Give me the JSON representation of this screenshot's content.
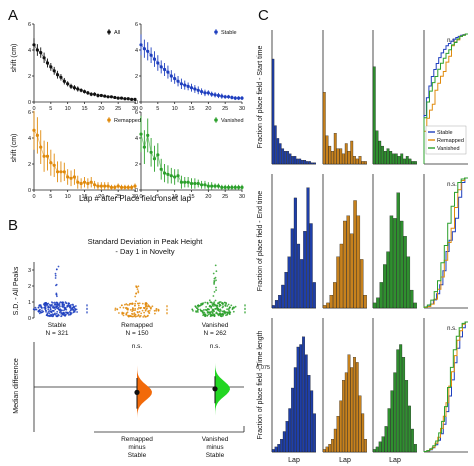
{
  "panel_letters": {
    "a": "A",
    "b": "B",
    "c": "C"
  },
  "colors": {
    "all": "#111111",
    "stable": "#1f3fbf",
    "remapped": "#e08a0c",
    "vanished": "#2ca02c",
    "stable_bar": "#1f3fa8",
    "remapped_bar": "#c6811d",
    "vanished_bar": "#2f8f2f",
    "remapped_diff": "#f26a0a",
    "vanished_diff": "#22d622"
  },
  "chart_data": [
    {
      "id": "A",
      "type": "line",
      "xlabel": "Lap # after Place field onset lap",
      "ylabel": "shift (cm)",
      "xlim": [
        0,
        30
      ],
      "ylim": [
        0,
        6
      ],
      "xticks": [
        0,
        5,
        10,
        15,
        20,
        25,
        30
      ],
      "yticks": [
        0,
        2,
        4,
        6
      ],
      "x": [
        0,
        1,
        2,
        3,
        4,
        5,
        6,
        7,
        8,
        9,
        10,
        11,
        12,
        13,
        14,
        15,
        16,
        17,
        18,
        19,
        20,
        21,
        22,
        23,
        24,
        25,
        26,
        27,
        28,
        29,
        30
      ],
      "series": [
        {
          "name": "All",
          "color_key": "all",
          "legend": "top-right",
          "values": [
            4.4,
            4.0,
            3.8,
            3.4,
            3.0,
            2.7,
            2.4,
            2.1,
            1.9,
            1.6,
            1.4,
            1.2,
            1.1,
            1.0,
            0.9,
            0.8,
            0.7,
            0.6,
            0.6,
            0.5,
            0.5,
            0.45,
            0.4,
            0.4,
            0.35,
            0.3,
            0.3,
            0.25,
            0.25,
            0.2,
            0.2
          ],
          "errors": [
            0.5,
            0.45,
            0.4,
            0.4,
            0.35,
            0.3,
            0.3,
            0.3,
            0.25,
            0.25,
            0.2,
            0.2,
            0.2,
            0.2,
            0.15,
            0.15,
            0.15,
            0.15,
            0.15,
            0.15,
            0.1,
            0.1,
            0.1,
            0.1,
            0.1,
            0.1,
            0.1,
            0.1,
            0.1,
            0.1,
            0.1
          ]
        },
        {
          "name": "Stable",
          "color_key": "stable",
          "legend": "top-right",
          "values": [
            4.4,
            4.1,
            3.9,
            3.6,
            3.3,
            3.0,
            2.7,
            2.5,
            2.3,
            2.0,
            1.8,
            1.6,
            1.4,
            1.3,
            1.2,
            1.1,
            1.0,
            0.9,
            0.8,
            0.7,
            0.7,
            0.6,
            0.55,
            0.5,
            0.45,
            0.4,
            0.4,
            0.35,
            0.3,
            0.3,
            0.3
          ],
          "errors": [
            0.8,
            0.7,
            0.7,
            0.6,
            0.6,
            0.6,
            0.5,
            0.5,
            0.5,
            0.45,
            0.4,
            0.4,
            0.4,
            0.35,
            0.3,
            0.3,
            0.3,
            0.3,
            0.25,
            0.25,
            0.2,
            0.2,
            0.2,
            0.2,
            0.2,
            0.15,
            0.15,
            0.15,
            0.15,
            0.15,
            0.15
          ]
        },
        {
          "name": "Remapped",
          "color_key": "remapped",
          "legend": "top-right",
          "values": [
            4.6,
            4.2,
            3.3,
            2.6,
            2.6,
            2.1,
            1.9,
            1.4,
            1.4,
            1.4,
            1.0,
            0.9,
            1.0,
            0.6,
            0.5,
            0.6,
            0.5,
            0.6,
            0.4,
            0.3,
            0.3,
            0.3,
            0.3,
            0.2,
            0.2,
            0.3,
            0.2,
            0.2,
            0.2,
            0.2,
            0.3
          ],
          "errors": [
            1.5,
            1.4,
            1.3,
            1.2,
            1.1,
            1.0,
            0.9,
            0.8,
            0.8,
            0.7,
            0.6,
            0.6,
            0.6,
            0.5,
            0.4,
            0.4,
            0.4,
            0.4,
            0.3,
            0.3,
            0.3,
            0.3,
            0.3,
            0.2,
            0.2,
            0.2,
            0.2,
            0.2,
            0.2,
            0.2,
            0.2
          ]
        },
        {
          "name": "Vanished",
          "color_key": "vanished",
          "legend": "top-right",
          "values": [
            4.3,
            3.3,
            4.2,
            2.9,
            2.4,
            2.7,
            1.6,
            1.3,
            1.2,
            1.1,
            1.0,
            1.1,
            0.6,
            0.6,
            0.6,
            0.5,
            0.5,
            0.5,
            0.4,
            0.4,
            0.3,
            0.3,
            0.3,
            0.3,
            0.2,
            0.2,
            0.2,
            0.2,
            0.2,
            0.2,
            0.2
          ],
          "errors": [
            1.4,
            1.3,
            1.3,
            1.1,
            1.0,
            0.9,
            0.8,
            0.7,
            0.7,
            0.6,
            0.6,
            0.5,
            0.5,
            0.4,
            0.4,
            0.4,
            0.4,
            0.3,
            0.3,
            0.3,
            0.3,
            0.3,
            0.2,
            0.2,
            0.2,
            0.2,
            0.2,
            0.2,
            0.2,
            0.2,
            0.2
          ]
        }
      ]
    },
    {
      "id": "B-top",
      "type": "scatter",
      "title": "Standard Deviation in Peak Height",
      "subtitle": "- Day 1 in Novelty",
      "ylabel": "S.D. - All Peaks",
      "yticks": [
        0,
        1,
        2,
        3
      ],
      "ylim": [
        0,
        3.5
      ],
      "categories": [
        "Stable",
        "Remapped",
        "Vanished"
      ],
      "n_labels": [
        "N = 321",
        "N = 150",
        "N = 262"
      ],
      "color_keys": [
        "stable",
        "remapped",
        "vanished"
      ],
      "medians": [
        0.55,
        0.5,
        0.55
      ],
      "maxima": [
        3.3,
        2.3,
        3.0
      ]
    },
    {
      "id": "B-bottom",
      "type": "scatter",
      "ylabel": "Median difference",
      "ylim": [
        -0.25,
        0.25
      ],
      "categories": [
        "Remapped minus Stable",
        "Vanished minus Stable"
      ],
      "category_lines": [
        [
          "Remapped",
          "minus",
          "Stable"
        ],
        [
          "Vanished",
          "minus",
          "Stable"
        ]
      ],
      "annotations": [
        "n.s.",
        "n.s."
      ],
      "color_keys": [
        "remapped_diff",
        "vanished_diff"
      ],
      "point_estimates": [
        -0.03,
        -0.01
      ],
      "ci": [
        [
          -0.12,
          0.05
        ],
        [
          -0.09,
          0.06
        ]
      ]
    },
    {
      "id": "C",
      "type": "bar",
      "xlabel": "Lap",
      "columns": [
        "Stable",
        "Remapped",
        "Vanished"
      ],
      "col_color_keys": [
        "stable_bar",
        "remapped_bar",
        "vanished_bar"
      ],
      "legend": [
        "Stable",
        "Remapped",
        "Vanished"
      ],
      "cdf_annotations": [
        "n.s.",
        "n.s.",
        "n.s."
      ],
      "rows": [
        {
          "ylabel": "Fraction of place field - Start time",
          "hist": [
            [
              0.82,
              0.3,
              0.2,
              0.16,
              0.12,
              0.1,
              0.1,
              0.08,
              0.06,
              0.06,
              0.04,
              0.04,
              0.03,
              0.03,
              0.02,
              0.02,
              0.01,
              0.01
            ],
            [
              0.56,
              0.22,
              0.14,
              0.1,
              0.24,
              0.12,
              0.12,
              0.08,
              0.16,
              0.1,
              0.18,
              0.06,
              0.04,
              0.06,
              0.02,
              0.02
            ],
            [
              0.76,
              0.26,
              0.18,
              0.14,
              0.1,
              0.12,
              0.1,
              0.08,
              0.08,
              0.06,
              0.08,
              0.04,
              0.06,
              0.04,
              0.02,
              0.02
            ]
          ]
        },
        {
          "ylabel": "Fraction of place field - End time",
          "hist": [
            [
              0.02,
              0.06,
              0.1,
              0.18,
              0.28,
              0.4,
              0.62,
              0.86,
              0.5,
              0.38,
              0.6,
              0.94,
              0.66,
              0.2
            ],
            [
              0.02,
              0.04,
              0.1,
              0.2,
              0.4,
              0.5,
              0.68,
              0.72,
              0.58,
              0.84,
              0.72,
              0.38,
              0.1
            ],
            [
              0.04,
              0.08,
              0.2,
              0.34,
              0.44,
              0.72,
              0.7,
              0.9,
              0.68,
              0.56,
              0.4,
              0.14,
              0.04
            ]
          ]
        },
        {
          "ylabel": "Fraction of place field - Time length",
          "hist": [
            [
              0.02,
              0.04,
              0.06,
              0.1,
              0.16,
              0.24,
              0.34,
              0.5,
              0.66,
              0.82,
              0.84,
              0.9,
              0.76,
              0.6,
              0.48,
              0.3
            ],
            [
              0.02,
              0.04,
              0.06,
              0.1,
              0.18,
              0.28,
              0.4,
              0.56,
              0.62,
              0.76,
              0.66,
              0.74,
              0.7,
              0.44,
              0.3,
              0.1
            ],
            [
              0.02,
              0.04,
              0.08,
              0.12,
              0.2,
              0.34,
              0.48,
              0.62,
              0.8,
              0.84,
              0.74,
              0.56,
              0.36,
              0.18,
              0.06
            ]
          ]
        }
      ],
      "row_ytick_labels": [
        [],
        [],
        [
          "0.075"
        ]
      ]
    }
  ]
}
